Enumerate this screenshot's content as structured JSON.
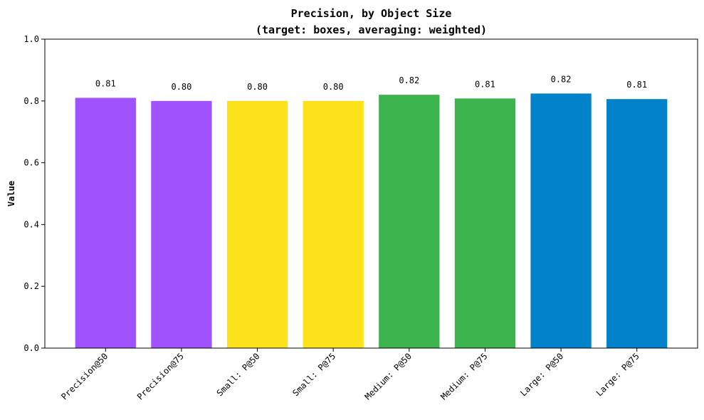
{
  "chart_data": {
    "type": "bar",
    "title": "Precision, by Object Size",
    "subtitle": "(target: boxes, averaging: weighted)",
    "xlabel": "",
    "ylabel": "Value",
    "ylim": [
      0,
      1.0
    ],
    "yticks": [
      0.0,
      0.2,
      0.4,
      0.6,
      0.8,
      1.0
    ],
    "ytick_labels": [
      "0.0",
      "0.2",
      "0.4",
      "0.6",
      "0.8",
      "1.0"
    ],
    "grid": false,
    "categories": [
      "Precision@50",
      "Precision@75",
      "Small: P@50",
      "Small: P@75",
      "Medium: P@50",
      "Medium: P@75",
      "Large: P@50",
      "Large: P@75"
    ],
    "values": [
      0.81,
      0.8,
      0.8,
      0.8,
      0.82,
      0.808,
      0.824,
      0.806
    ],
    "value_labels": [
      "0.81",
      "0.80",
      "0.80",
      "0.80",
      "0.82",
      "0.81",
      "0.82",
      "0.81"
    ],
    "colors": [
      "#a052fd",
      "#a052fd",
      "#fde11b",
      "#fde11b",
      "#3db44e",
      "#3db44e",
      "#0282c8",
      "#0282c8"
    ]
  }
}
